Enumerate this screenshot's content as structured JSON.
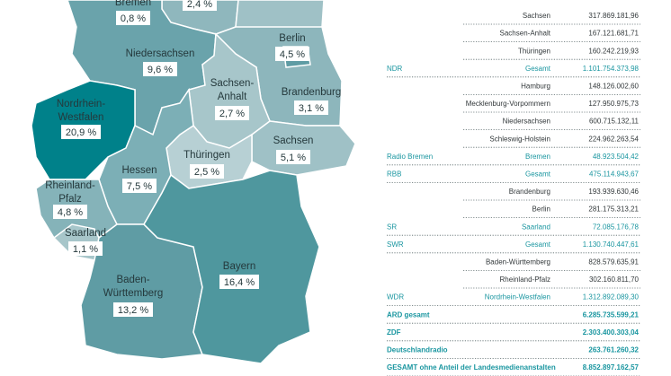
{
  "map": {
    "regions": [
      {
        "name": [
          "Bremen"
        ],
        "share": "0,8 %"
      },
      {
        "share": "2,4 %"
      },
      {
        "name": [
          "Niedersachsen"
        ],
        "share": "9,6 %"
      },
      {
        "name": [
          "Berlin"
        ],
        "share": "4,5 %"
      },
      {
        "name": [
          "Sachsen-",
          "Anhalt"
        ],
        "share": "2,7 %"
      },
      {
        "name": [
          "Brandenburg"
        ],
        "share": "3,1 %"
      },
      {
        "name": [
          "Nordrhein-",
          "Westfalen"
        ],
        "share": "20,9 %"
      },
      {
        "name": [
          "Thüringen"
        ],
        "share": "2,5 %"
      },
      {
        "name": [
          "Sachsen"
        ],
        "share": "5,1 %"
      },
      {
        "name": [
          "Hessen"
        ],
        "share": "7,5 %"
      },
      {
        "name": [
          "Rheinland-",
          "Pfalz"
        ],
        "share": "4,8 %"
      },
      {
        "name": [
          "Saarland"
        ],
        "share": "1,1 %"
      },
      {
        "name": [
          "Baden-",
          "Württemberg"
        ],
        "share": "13,2 %"
      },
      {
        "name": [
          "Bayern"
        ],
        "share": "16,4 %"
      }
    ]
  },
  "table": {
    "rows": [
      {
        "region": "Sachsen",
        "amount": "317.869.181,96"
      },
      {
        "region": "Sachsen-Anhalt",
        "amount": "167.121.681,71"
      },
      {
        "region": "Thüringen",
        "amount": "160.242.219,93"
      },
      {
        "broadcaster": "NDR",
        "region": "Gesamt",
        "amount": "1.101.754.373,98"
      },
      {
        "region": "Hamburg",
        "amount": "148.126.002,60"
      },
      {
        "region": "Mecklenburg-Vorpommern",
        "amount": "127.950.975,73"
      },
      {
        "region": "Niedersachsen",
        "amount": "600.715.132,11"
      },
      {
        "region": "Schleswig-Holstein",
        "amount": "224.962.263,54"
      },
      {
        "broadcaster": "Radio Bremen",
        "region": "Bremen",
        "amount": "48.923.504,42"
      },
      {
        "broadcaster": "RBB",
        "region": "Gesamt",
        "amount": "475.114.943,67"
      },
      {
        "region": "Brandenburg",
        "amount": "193.939.630,46"
      },
      {
        "region": "Berlin",
        "amount": "281.175.313,21"
      },
      {
        "broadcaster": "SR",
        "region": "Saarland",
        "amount": "72.085.176,78"
      },
      {
        "broadcaster": "SWR",
        "region": "Gesamt",
        "amount": "1.130.740.447,61"
      },
      {
        "region": "Baden-Württemberg",
        "amount": "828.579.635,91"
      },
      {
        "region": "Rheinland-Pfalz",
        "amount": "302.160.811,70"
      },
      {
        "broadcaster": "WDR",
        "region": "Nordrhein-Westfalen",
        "amount": "1.312.892.089,30"
      },
      {
        "label": "ARD gesamt",
        "amount": "6.285.735.599,21"
      },
      {
        "label": "ZDF",
        "amount": "2.303.400.303,04"
      },
      {
        "label": "Deutschlandradio",
        "amount": "263.761.260,32"
      },
      {
        "label": "GESAMT ohne Anteil der Landesmedienanstalten",
        "amount": "8.852.897.162,57"
      }
    ]
  }
}
